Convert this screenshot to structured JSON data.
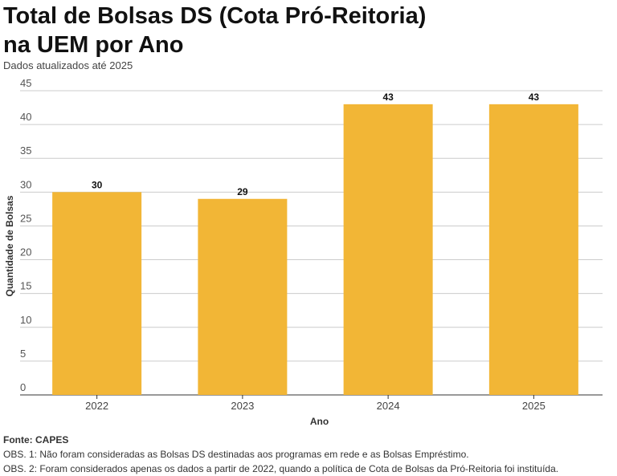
{
  "title_line1": "Total de Bolsas DS (Cota Pró-Reitoria)",
  "title_line2": "na UEM por Ano",
  "subtitle": "Dados atualizados até 2025",
  "chart_data": {
    "type": "bar",
    "categories": [
      "2022",
      "2023",
      "2024",
      "2025"
    ],
    "values": [
      30,
      29,
      43,
      43
    ],
    "xlabel": "Ano",
    "ylabel": "Quantidade de Bolsas",
    "ylim": [
      0,
      45
    ],
    "yticks": [
      0,
      5,
      10,
      15,
      20,
      25,
      30,
      35,
      40,
      45
    ],
    "grid": true,
    "data_labels": true,
    "bar_color": "#F2B636"
  },
  "source": "Fonte: CAPES",
  "notes": [
    "OBS. 1: Não foram consideradas as Bolsas DS destinadas aos programas em rede e as Bolsas Empréstimo.",
    "OBS. 2: Foram considerados apenas os dados a partir de 2022, quando a política de Cota de Bolsas da Pró-Reitoria foi instituída."
  ]
}
